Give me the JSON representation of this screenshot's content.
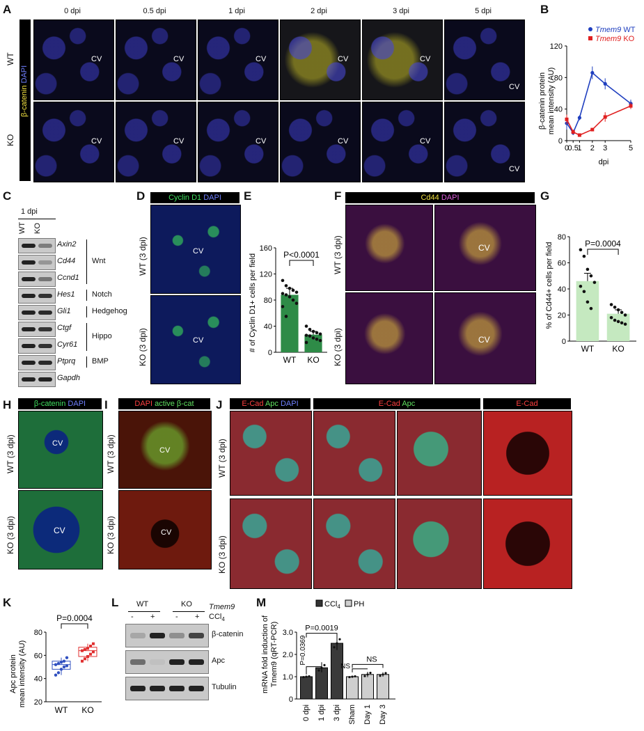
{
  "panels": {
    "A": "A",
    "B": "B",
    "C": "C",
    "D": "D",
    "E": "E",
    "F": "F",
    "G": "G",
    "H": "H",
    "I": "I",
    "J": "J",
    "K": "K",
    "L": "L",
    "M": "M"
  },
  "panelA": {
    "timepoints": [
      "0 dpi",
      "0.5 dpi",
      "1 dpi",
      "2 dpi",
      "3 dpi",
      "5 dpi"
    ],
    "rows": [
      "WT",
      "KO"
    ],
    "stain_a": "β-catenin",
    "stain_b": "DAPI",
    "cv": "CV"
  },
  "panelB": {
    "ylabel_1": "β-catenin protein",
    "ylabel_2": "mean intensity (AU)",
    "xlabel": "dpi",
    "legend_gene": "Tmem9",
    "legend_wt": "WT",
    "legend_ko": "KO",
    "wt_color": "#1f3fbf",
    "ko_color": "#e02020"
  },
  "panelC": {
    "header": "1 dpi",
    "lanes": [
      "WT",
      "KO"
    ],
    "genes": [
      "Axin2",
      "Cd44",
      "Ccnd1",
      "Hes1",
      "Gli1",
      "Ctgf",
      "Cyr61",
      "Ptprq",
      "Gapdh"
    ],
    "pathways": [
      "Wnt",
      "Notch",
      "Hedgehog",
      "Hippo",
      "BMP"
    ]
  },
  "panelD": {
    "stain_a": "Cyclin D1",
    "stain_b": "DAPI",
    "rows": [
      "WT (3 dpi)",
      "KO (3 dpi)"
    ],
    "cv": "CV"
  },
  "panelE": {
    "ylabel": "# of Cyclin D1+ cells per field",
    "pvalue": "P<0.0001"
  },
  "panelF": {
    "stain_a": "Cd44",
    "stain_b": "DAPI",
    "rows": [
      "WT (3 dpi)",
      "KO (3 dpi)"
    ],
    "cv": "CV"
  },
  "panelG": {
    "ylabel": "% of Cd44+ cells per field",
    "pvalue": "P=0.0004"
  },
  "panelH": {
    "stain_a": "β-catenin",
    "stain_b": "DAPI",
    "rows": [
      "WT (3 dpi)",
      "KO (3 dpi)"
    ],
    "cv": "CV"
  },
  "panelI": {
    "stain_a": "DAPI",
    "stain_b": "active β-cat",
    "rows": [
      "WT (3 dpi)",
      "KO (3 dpi)"
    ],
    "cv": "CV"
  },
  "panelJ": {
    "header1_a": "E-Cad",
    "header1_b": "Apc",
    "header1_c": "DAPI",
    "header2_a": "E-Cad",
    "header2_b": "Apc",
    "header3": "E-Cad",
    "rows": [
      "WT (3 dpi)",
      "KO (3 dpi)"
    ]
  },
  "panelK": {
    "ylabel_1": "Apc protein",
    "ylabel_2": "mean intensity (AU)",
    "pvalue": "P=0.0004",
    "categories": [
      "WT",
      "KO"
    ]
  },
  "panelL": {
    "groups": [
      "WT",
      "KO"
    ],
    "signs": [
      "-",
      "+",
      "-",
      "+"
    ],
    "gene": "Tmem9",
    "treatment": "CCl",
    "treatment_sub": "4",
    "proteins": [
      "β-catenin",
      "Apc",
      "Tubulin"
    ]
  },
  "panelM": {
    "ylabel_1": "mRNA fold induction of",
    "ylabel_2": "Tmem9 (qRT-PCR)",
    "legend_ccl4": "CCl",
    "legend_ccl4_sub": "4",
    "legend_ph": "PH",
    "p1": "P=0.0369",
    "p2": "P=0.0019",
    "ns1": "NS",
    "ns2": "NS",
    "categories": [
      "0 dpi",
      "1 dpi",
      "3 dpi",
      "Sham",
      "Day 1",
      "Day 3"
    ]
  },
  "chart_data": [
    {
      "type": "line",
      "panel": "B",
      "x": [
        0,
        0.5,
        1,
        2,
        3,
        5
      ],
      "xticks": [
        "0",
        "0.5",
        "1",
        "2",
        "3",
        "5"
      ],
      "ylim": [
        0,
        120
      ],
      "yticks": [
        0,
        40,
        80,
        120
      ],
      "series": [
        {
          "name": "Tmem9 WT",
          "values": [
            22,
            10,
            29,
            86,
            72,
            47
          ],
          "err": [
            8,
            3,
            3,
            8,
            7,
            5
          ]
        },
        {
          "name": "Tmem9 KO",
          "values": [
            27,
            11,
            7,
            14,
            30,
            44
          ],
          "err": [
            6,
            3,
            2,
            2,
            6,
            4
          ]
        }
      ]
    },
    {
      "type": "bar",
      "panel": "E",
      "categories": [
        "WT",
        "KO"
      ],
      "values": [
        88,
        27
      ],
      "err": [
        10,
        5
      ],
      "ylim": [
        0,
        160
      ],
      "yticks": [
        0,
        40,
        80,
        120,
        160
      ],
      "points": [
        [
          110,
          102,
          98,
          95,
          92,
          90,
          88,
          85,
          80,
          75,
          70,
          55
        ],
        [
          40,
          35,
          32,
          30,
          28,
          26,
          25,
          22,
          20,
          18,
          15
        ]
      ]
    },
    {
      "type": "bar",
      "panel": "G",
      "categories": [
        "WT",
        "KO"
      ],
      "values": [
        46,
        21
      ],
      "err": [
        6,
        3
      ],
      "ylim": [
        0,
        80
      ],
      "yticks": [
        0,
        20,
        40,
        60,
        80
      ],
      "points": [
        [
          70,
          65,
          55,
          50,
          45,
          42,
          38,
          30,
          25
        ],
        [
          28,
          26,
          24,
          22,
          20,
          18,
          16,
          15,
          14,
          13
        ]
      ]
    },
    {
      "type": "box",
      "panel": "K",
      "categories": [
        "WT",
        "KO"
      ],
      "ylim": [
        20,
        80
      ],
      "yticks": [
        20,
        40,
        60,
        80
      ],
      "boxes": [
        {
          "min": 43,
          "q1": 48,
          "median": 52,
          "q3": 55,
          "max": 58
        },
        {
          "min": 55,
          "q1": 59,
          "median": 64,
          "q3": 67,
          "max": 70
        }
      ],
      "points": [
        [
          43,
          45,
          48,
          50,
          51,
          52,
          53,
          54,
          55,
          58
        ],
        [
          55,
          57,
          59,
          61,
          63,
          64,
          65,
          66,
          68,
          70
        ]
      ]
    },
    {
      "type": "bar",
      "panel": "M",
      "categories": [
        "0 dpi",
        "1 dpi",
        "3 dpi",
        "Sham",
        "Day 1",
        "Day 3"
      ],
      "values": [
        1.0,
        1.4,
        2.5,
        1.0,
        1.1,
        1.1
      ],
      "err": [
        0.03,
        0.2,
        0.3,
        0.03,
        0.12,
        0.1
      ],
      "series_of_bar": [
        "CCl4",
        "CCl4",
        "CCl4",
        "PH",
        "PH",
        "PH"
      ],
      "ylim": [
        0,
        3.0
      ],
      "yticks": [
        "0",
        "1.0",
        "2.0",
        "3.0"
      ]
    }
  ]
}
